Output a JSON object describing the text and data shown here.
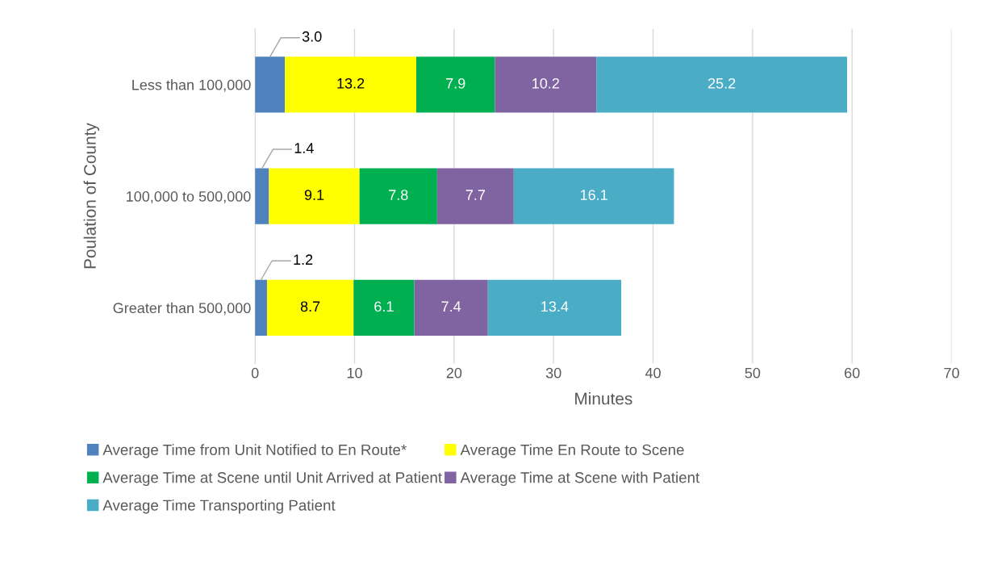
{
  "chart_data": {
    "type": "bar",
    "orientation": "horizontal",
    "stacked": true,
    "xlabel": "Minutes",
    "ylabel": "Poulation of County",
    "categories": [
      "Less than 100,000",
      "100,000 to 500,000",
      "Greater than 500,000"
    ],
    "series": [
      {
        "name": "Average Time from Unit Notified to En Route*",
        "color": "#4f81bd",
        "values": [
          3.0,
          1.4,
          1.2
        ],
        "value_labels": [
          "3.0",
          "1.4",
          "1.2"
        ]
      },
      {
        "name": "Average Time En Route to Scene",
        "color": "#ffff00",
        "values": [
          13.2,
          9.1,
          8.7
        ],
        "value_labels": [
          "13.2",
          "9.1",
          "8.7"
        ]
      },
      {
        "name": "Average Time at Scene until Unit Arrived at Patient",
        "color": "#00b050",
        "values": [
          7.9,
          7.8,
          6.1
        ],
        "value_labels": [
          "7.9",
          "7.8",
          "6.1"
        ]
      },
      {
        "name": "Average Time at Scene with Patient",
        "color": "#8064a2",
        "values": [
          10.2,
          7.7,
          7.4
        ],
        "value_labels": [
          "10.2",
          "7.7",
          "7.4"
        ]
      },
      {
        "name": "Average Time Transporting Patient",
        "color": "#4bacc6",
        "values": [
          25.2,
          16.1,
          13.4
        ],
        "value_labels": [
          "25.2",
          "16.1",
          "13.4"
        ]
      }
    ],
    "xlim": [
      0,
      70
    ],
    "xticks": [
      0,
      10,
      20,
      30,
      40,
      50,
      60,
      70
    ],
    "grid": "x",
    "legend": "bottom"
  }
}
